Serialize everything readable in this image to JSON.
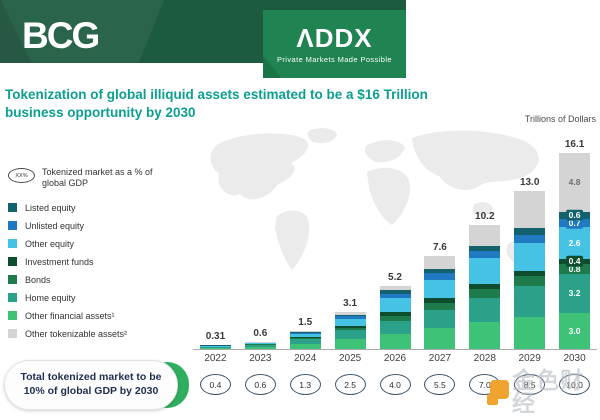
{
  "header": {
    "bcg_logo": "BCG",
    "addx_logo": "ΛDDX",
    "addx_tagline": "Private Markets Made Possible"
  },
  "title": "Tokenization of global illiquid assets estimated to be a $16 Trillion business opportunity by 2030",
  "units_label": "Trillions of Dollars",
  "legend": {
    "marker_icon_text": "XX%",
    "marker_label": "Tokenized market as a % of global GDP",
    "items": [
      {
        "label": "Listed equity",
        "color": "#14616e"
      },
      {
        "label": "Unlisted equity",
        "color": "#1f7ac2"
      },
      {
        "label": "Other equity",
        "color": "#45c2e4"
      },
      {
        "label": "Investment funds",
        "color": "#0d4d2e"
      },
      {
        "label": "Bonds",
        "color": "#1e7b4b"
      },
      {
        "label": "Home equity",
        "color": "#2ba189"
      },
      {
        "label": "Other financial assets¹",
        "color": "#3dc278"
      },
      {
        "label": "Other tokenizable assets²",
        "color": "#d4d4d4"
      }
    ]
  },
  "chart_data": {
    "type": "bar",
    "stacked": true,
    "title": "Tokenization of global illiquid assets estimated to be a $16 Trillion business opportunity by 2030",
    "ylabel": "Trillions of Dollars",
    "ylim": [
      0,
      17
    ],
    "grid": false,
    "legend_position": "left",
    "categories": [
      "2022",
      "2023",
      "2024",
      "2025",
      "2026",
      "2027",
      "2028",
      "2029",
      "2030"
    ],
    "totals": [
      0.31,
      0.6,
      1.5,
      3.1,
      5.2,
      7.6,
      10.2,
      13.0,
      16.1
    ],
    "total_labels": [
      "0.31",
      "0.6",
      "1.5",
      "3.1",
      "5.2",
      "7.6",
      "10.2",
      "13.0",
      "16.1"
    ],
    "series_note": "stack order bottom-to-top; only 2030 segment values are labeled in the figure, earlier-year splits estimated from pixels",
    "series": [
      {
        "name": "Other financial assets¹",
        "color": "#3dc278",
        "values": [
          0.12,
          0.2,
          0.45,
          0.85,
          1.2,
          1.7,
          2.2,
          2.6,
          3.0
        ],
        "label_2030": "3.0"
      },
      {
        "name": "Home equity",
        "color": "#2ba189",
        "values": [
          0.13,
          0.2,
          0.35,
          0.7,
          1.1,
          1.5,
          2.0,
          2.6,
          3.2
        ],
        "label_2030": "3.2"
      },
      {
        "name": "Bonds",
        "color": "#1e7b4b",
        "values": [
          0.02,
          0.05,
          0.1,
          0.2,
          0.45,
          0.6,
          0.75,
          0.8,
          0.8
        ],
        "label_2030": "0.8"
      },
      {
        "name": "Investment funds",
        "color": "#0d4d2e",
        "values": [
          0.01,
          0.02,
          0.05,
          0.15,
          0.3,
          0.35,
          0.4,
          0.45,
          0.4
        ],
        "label_2030": "0.4"
      },
      {
        "name": "Other equity",
        "color": "#45c2e4",
        "values": [
          0.01,
          0.06,
          0.25,
          0.55,
          1.1,
          1.55,
          2.1,
          2.3,
          2.6
        ],
        "label_2030": "2.6"
      },
      {
        "name": "Unlisted equity",
        "color": "#1f7ac2",
        "values": [
          0.01,
          0.03,
          0.12,
          0.25,
          0.35,
          0.5,
          0.6,
          0.65,
          0.7
        ],
        "label_2030": "0.7"
      },
      {
        "name": "Listed equity",
        "color": "#14616e",
        "values": [
          0.01,
          0.02,
          0.08,
          0.15,
          0.3,
          0.4,
          0.45,
          0.55,
          0.6
        ],
        "label_2030": "0.6"
      },
      {
        "name": "Other tokenizable assets²",
        "color": "#d4d4d4",
        "values": [
          0.0,
          0.02,
          0.1,
          0.25,
          0.4,
          1.0,
          1.7,
          3.05,
          4.8
        ],
        "label_2030": "4.8"
      }
    ],
    "gdp_percent_row": [
      "0.4",
      "0.6",
      "1.3",
      "2.5",
      "4.0",
      "5.5",
      "7.0",
      "8.5",
      "10.0"
    ]
  },
  "footer_pill": {
    "line1": "Total tokenized market to be",
    "line2": "10% of global GDP by 2030"
  },
  "watermark": {
    "text": "金色财经"
  }
}
